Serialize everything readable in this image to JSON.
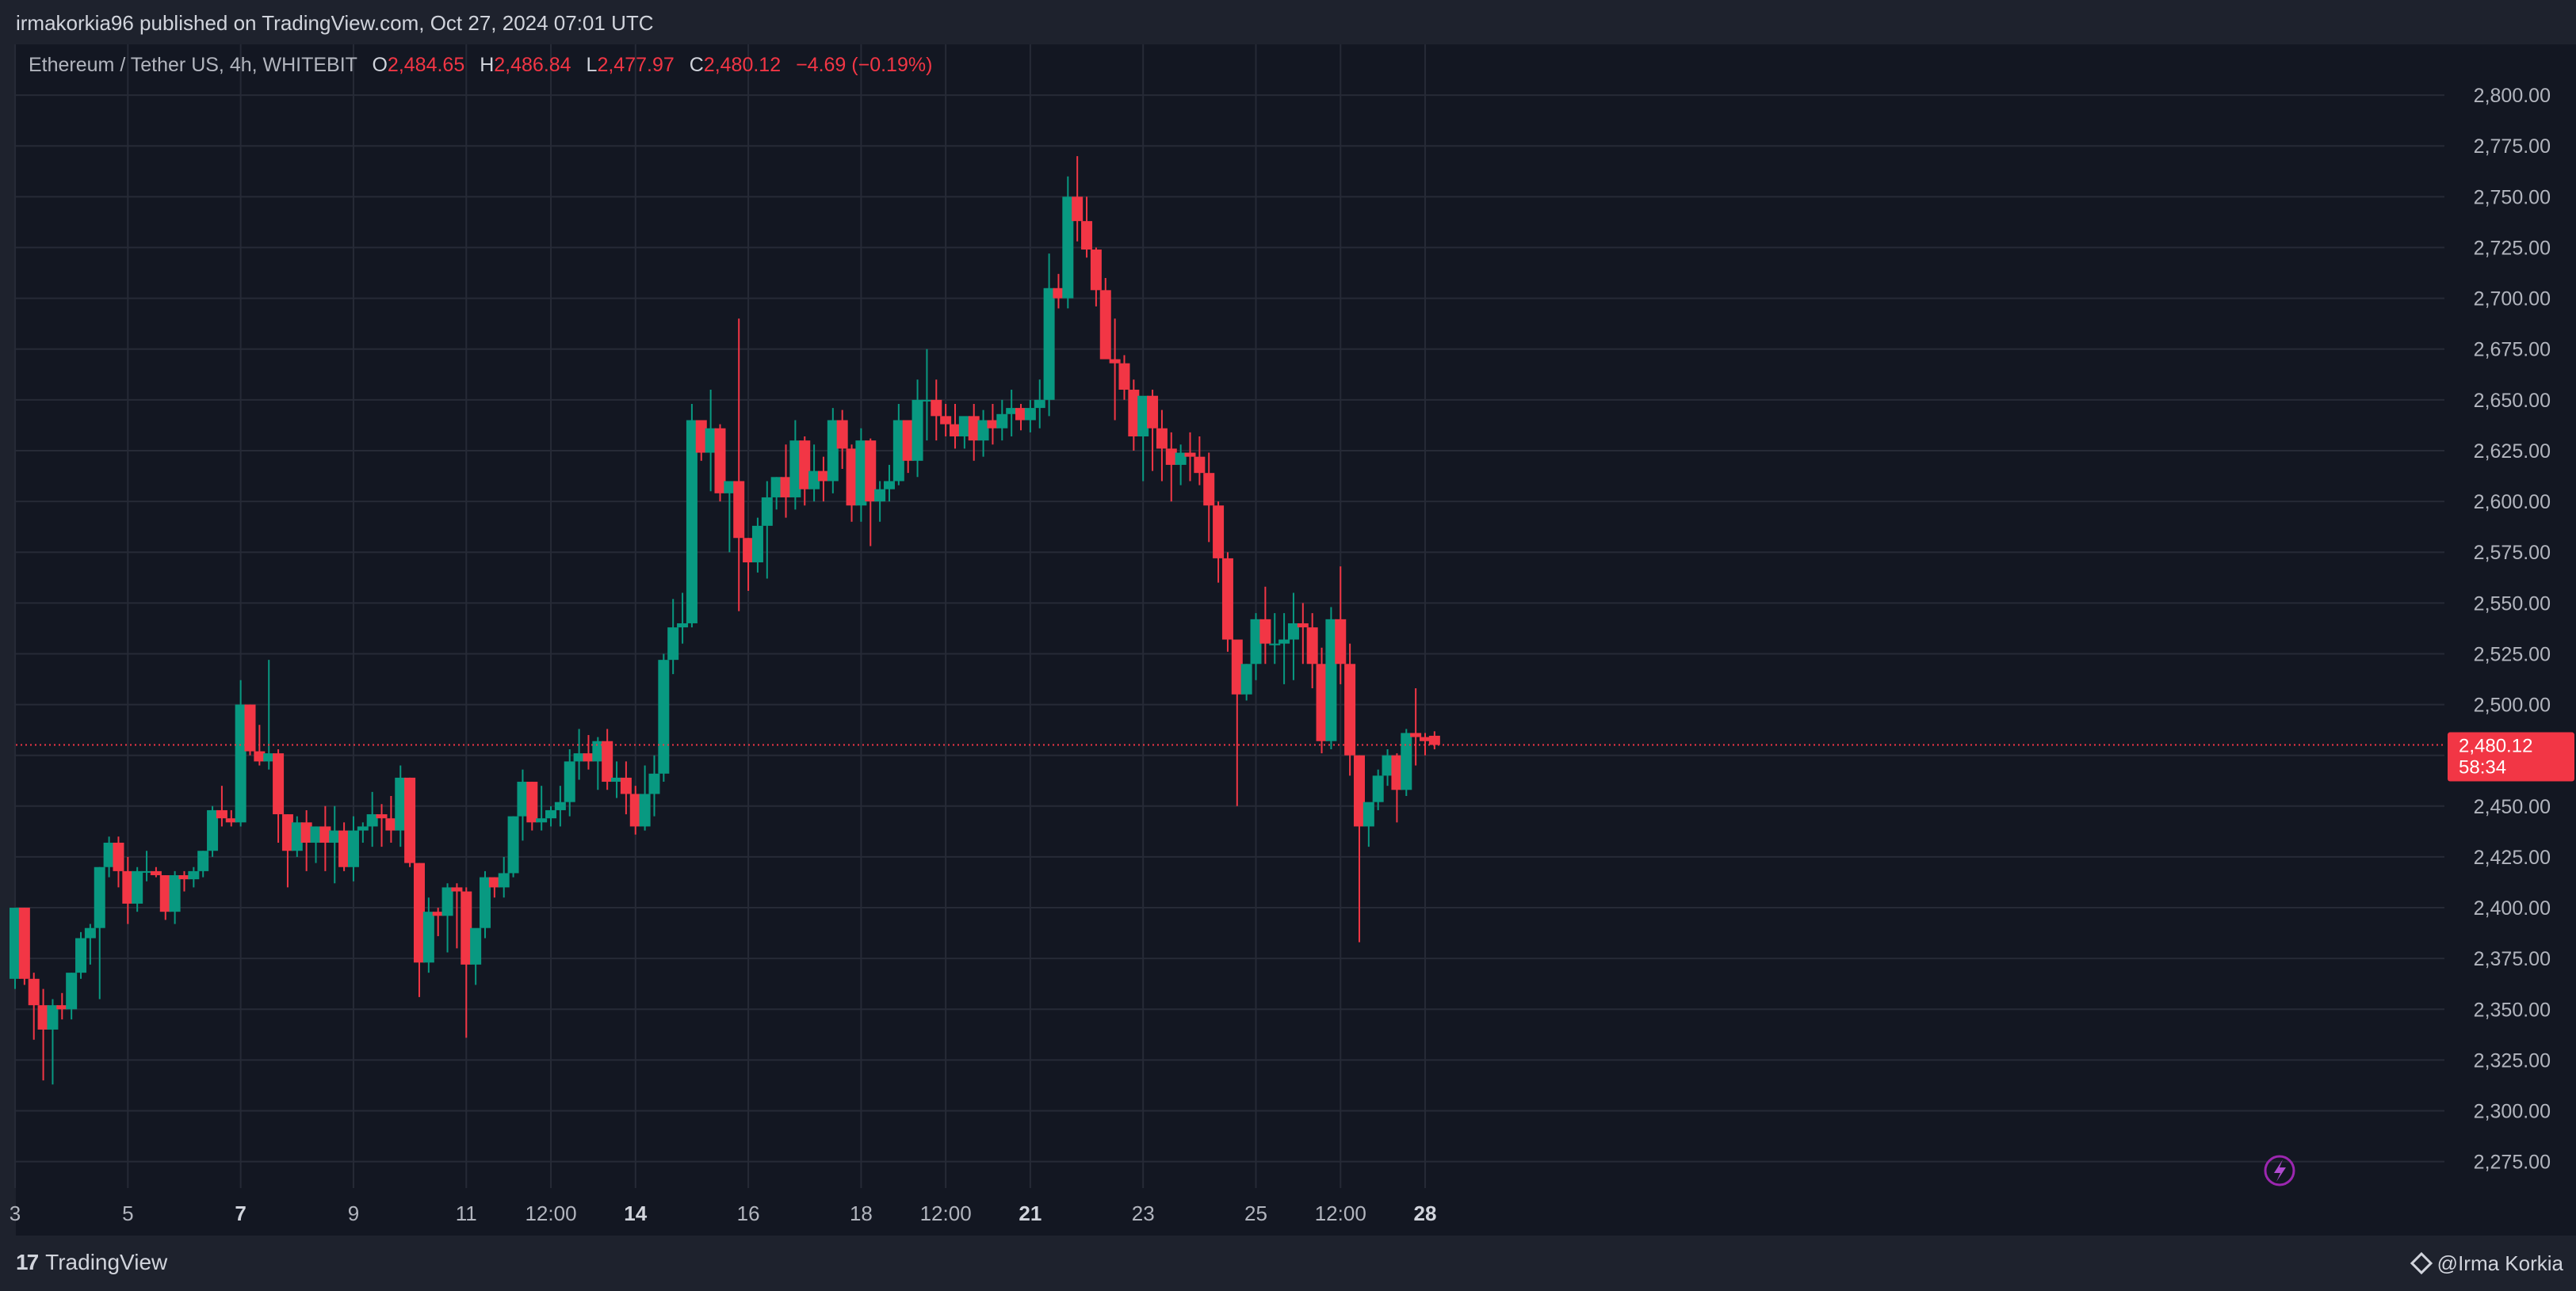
{
  "header": {
    "published_line": "irmakorkia96 published on TradingView.com, Oct 27, 2024 07:01 UTC"
  },
  "legend": {
    "symbol": "Ethereum / Tether US, 4h, WHITEBIT",
    "o_label": "O",
    "o": "2,484.65",
    "h_label": "H",
    "h": "2,486.84",
    "l_label": "L",
    "l": "2,477.97",
    "c_label": "C",
    "c": "2,480.12",
    "change": "−4.69 (−0.19%)"
  },
  "last_price": {
    "price": "2,480.12",
    "countdown": "58:34"
  },
  "footer": {
    "brand": "TradingView",
    "author": "@Irma Korkia"
  },
  "colors": {
    "up": "#089981",
    "down": "#f23645",
    "background": "#131722",
    "grid": "#262a36",
    "axis_text": "#b2b5be"
  },
  "chart_data": {
    "type": "candlestick",
    "symbol": "Ethereum / Tether US",
    "timeframe": "4h",
    "exchange": "WHITEBIT",
    "ylim": [
      2262,
      2825
    ],
    "y_ticks": [
      2275,
      2300,
      2325,
      2350,
      2375,
      2400,
      2425,
      2450,
      2475,
      2500,
      2525,
      2550,
      2575,
      2600,
      2625,
      2650,
      2675,
      2700,
      2725,
      2750,
      2775,
      2800
    ],
    "x_ticks": [
      {
        "label": "3",
        "i": 0,
        "major": false
      },
      {
        "label": "5",
        "i": 12,
        "major": false
      },
      {
        "label": "7",
        "i": 24,
        "major": true
      },
      {
        "label": "9",
        "i": 36,
        "major": false
      },
      {
        "label": "11",
        "i": 48,
        "major": false
      },
      {
        "label": "12:00",
        "i": 57,
        "major": false
      },
      {
        "label": "14",
        "i": 66,
        "major": true
      },
      {
        "label": "16",
        "i": 78,
        "major": false
      },
      {
        "label": "18",
        "i": 90,
        "major": false
      },
      {
        "label": "12:00",
        "i": 99,
        "major": false
      },
      {
        "label": "21",
        "i": 108,
        "major": true
      },
      {
        "label": "23",
        "i": 120,
        "major": false
      },
      {
        "label": "25",
        "i": 132,
        "major": false
      },
      {
        "label": "12:00",
        "i": 141,
        "major": false
      },
      {
        "label": "28",
        "i": 150,
        "major": true
      }
    ],
    "candles": [
      [
        2365,
        2400,
        2360,
        2400
      ],
      [
        2400,
        2400,
        2362,
        2365
      ],
      [
        2365,
        2368,
        2335,
        2352
      ],
      [
        2352,
        2360,
        2315,
        2340
      ],
      [
        2340,
        2355,
        2313,
        2352
      ],
      [
        2352,
        2358,
        2345,
        2350
      ],
      [
        2350,
        2368,
        2345,
        2368
      ],
      [
        2368,
        2388,
        2365,
        2385
      ],
      [
        2385,
        2392,
        2372,
        2390
      ],
      [
        2390,
        2420,
        2355,
        2420
      ],
      [
        2420,
        2435,
        2415,
        2432
      ],
      [
        2432,
        2435,
        2410,
        2418
      ],
      [
        2418,
        2425,
        2392,
        2402
      ],
      [
        2402,
        2420,
        2398,
        2418
      ],
      [
        2418,
        2428,
        2413,
        2418
      ],
      [
        2418,
        2420,
        2415,
        2416
      ],
      [
        2416,
        2416,
        2394,
        2398
      ],
      [
        2398,
        2418,
        2392,
        2416
      ],
      [
        2416,
        2418,
        2408,
        2414
      ],
      [
        2414,
        2420,
        2410,
        2418
      ],
      [
        2418,
        2428,
        2415,
        2428
      ],
      [
        2428,
        2450,
        2425,
        2448
      ],
      [
        2448,
        2460,
        2440,
        2444
      ],
      [
        2444,
        2448,
        2440,
        2442
      ],
      [
        2442,
        2512,
        2440,
        2500
      ],
      [
        2500,
        2500,
        2475,
        2477
      ],
      [
        2477,
        2490,
        2470,
        2472
      ],
      [
        2472,
        2522,
        2468,
        2476
      ],
      [
        2476,
        2478,
        2432,
        2446
      ],
      [
        2446,
        2446,
        2410,
        2428
      ],
      [
        2428,
        2445,
        2425,
        2442
      ],
      [
        2442,
        2448,
        2418,
        2432
      ],
      [
        2432,
        2440,
        2422,
        2440
      ],
      [
        2440,
        2450,
        2418,
        2432
      ],
      [
        2432,
        2450,
        2412,
        2438
      ],
      [
        2438,
        2442,
        2418,
        2420
      ],
      [
        2420,
        2445,
        2413,
        2438
      ],
      [
        2438,
        2442,
        2432,
        2440
      ],
      [
        2440,
        2457,
        2430,
        2446
      ],
      [
        2446,
        2451,
        2430,
        2444
      ],
      [
        2444,
        2455,
        2432,
        2438
      ],
      [
        2438,
        2470,
        2430,
        2464
      ],
      [
        2464,
        2464,
        2420,
        2422
      ],
      [
        2422,
        2422,
        2356,
        2373
      ],
      [
        2373,
        2405,
        2368,
        2398
      ],
      [
        2398,
        2400,
        2386,
        2396
      ],
      [
        2396,
        2412,
        2378,
        2410
      ],
      [
        2410,
        2412,
        2380,
        2408
      ],
      [
        2408,
        2410,
        2336,
        2372
      ],
      [
        2372,
        2388,
        2362,
        2390
      ],
      [
        2390,
        2418,
        2385,
        2415
      ],
      [
        2415,
        2415,
        2405,
        2410
      ],
      [
        2410,
        2425,
        2405,
        2417
      ],
      [
        2417,
        2445,
        2415,
        2445
      ],
      [
        2445,
        2468,
        2433,
        2462
      ],
      [
        2462,
        2462,
        2438,
        2442
      ],
      [
        2442,
        2460,
        2438,
        2444
      ],
      [
        2444,
        2450,
        2440,
        2448
      ],
      [
        2448,
        2460,
        2440,
        2452
      ],
      [
        2452,
        2478,
        2445,
        2472
      ],
      [
        2472,
        2488,
        2463,
        2476
      ],
      [
        2476,
        2485,
        2468,
        2472
      ],
      [
        2472,
        2484,
        2458,
        2482
      ],
      [
        2482,
        2488,
        2458,
        2462
      ],
      [
        2462,
        2472,
        2454,
        2464
      ],
      [
        2464,
        2472,
        2446,
        2456
      ],
      [
        2456,
        2460,
        2436,
        2440
      ],
      [
        2440,
        2470,
        2438,
        2456
      ],
      [
        2456,
        2475,
        2445,
        2466
      ],
      [
        2466,
        2525,
        2462,
        2522
      ],
      [
        2522,
        2552,
        2515,
        2538
      ],
      [
        2538,
        2555,
        2530,
        2540
      ],
      [
        2540,
        2648,
        2538,
        2640
      ],
      [
        2640,
        2640,
        2620,
        2624
      ],
      [
        2624,
        2655,
        2605,
        2636
      ],
      [
        2636,
        2638,
        2600,
        2604
      ],
      [
        2604,
        2610,
        2575,
        2610
      ],
      [
        2610,
        2690,
        2546,
        2582
      ],
      [
        2582,
        2582,
        2556,
        2570
      ],
      [
        2570,
        2592,
        2565,
        2588
      ],
      [
        2588,
        2610,
        2562,
        2602
      ],
      [
        2602,
        2612,
        2596,
        2612
      ],
      [
        2612,
        2628,
        2592,
        2602
      ],
      [
        2602,
        2640,
        2596,
        2630
      ],
      [
        2630,
        2632,
        2598,
        2606
      ],
      [
        2606,
        2628,
        2600,
        2615
      ],
      [
        2615,
        2622,
        2600,
        2610
      ],
      [
        2610,
        2646,
        2604,
        2640
      ],
      [
        2640,
        2645,
        2616,
        2626
      ],
      [
        2626,
        2628,
        2590,
        2598
      ],
      [
        2598,
        2636,
        2590,
        2630
      ],
      [
        2630,
        2631,
        2578,
        2600
      ],
      [
        2600,
        2610,
        2590,
        2606
      ],
      [
        2606,
        2618,
        2600,
        2610
      ],
      [
        2610,
        2648,
        2608,
        2640
      ],
      [
        2640,
        2640,
        2614,
        2620
      ],
      [
        2620,
        2660,
        2612,
        2650
      ],
      [
        2650,
        2675,
        2630,
        2650
      ],
      [
        2650,
        2660,
        2630,
        2642
      ],
      [
        2642,
        2648,
        2632,
        2638
      ],
      [
        2638,
        2648,
        2626,
        2632
      ],
      [
        2632,
        2640,
        2626,
        2642
      ],
      [
        2642,
        2648,
        2620,
        2630
      ],
      [
        2630,
        2645,
        2622,
        2640
      ],
      [
        2640,
        2648,
        2628,
        2636
      ],
      [
        2636,
        2650,
        2630,
        2643
      ],
      [
        2643,
        2655,
        2632,
        2646
      ],
      [
        2646,
        2648,
        2635,
        2640
      ],
      [
        2640,
        2650,
        2634,
        2646
      ],
      [
        2646,
        2660,
        2636,
        2650
      ],
      [
        2650,
        2722,
        2642,
        2705
      ],
      [
        2705,
        2712,
        2695,
        2700
      ],
      [
        2700,
        2760,
        2695,
        2750
      ],
      [
        2750,
        2770,
        2728,
        2738
      ],
      [
        2738,
        2750,
        2720,
        2724
      ],
      [
        2724,
        2725,
        2696,
        2704
      ],
      [
        2704,
        2710,
        2670,
        2670
      ],
      [
        2670,
        2690,
        2640,
        2668
      ],
      [
        2668,
        2672,
        2650,
        2655
      ],
      [
        2655,
        2660,
        2625,
        2632
      ],
      [
        2632,
        2650,
        2610,
        2652
      ],
      [
        2652,
        2655,
        2615,
        2636
      ],
      [
        2636,
        2645,
        2610,
        2626
      ],
      [
        2626,
        2634,
        2600,
        2618
      ],
      [
        2618,
        2628,
        2608,
        2624
      ],
      [
        2624,
        2634,
        2610,
        2622
      ],
      [
        2622,
        2632,
        2608,
        2614
      ],
      [
        2614,
        2624,
        2580,
        2598
      ],
      [
        2598,
        2600,
        2560,
        2572
      ],
      [
        2572,
        2575,
        2526,
        2532
      ],
      [
        2532,
        2532,
        2450,
        2505
      ],
      [
        2505,
        2520,
        2502,
        2520
      ],
      [
        2520,
        2545,
        2512,
        2542
      ],
      [
        2542,
        2558,
        2520,
        2530
      ],
      [
        2530,
        2545,
        2520,
        2530
      ],
      [
        2530,
        2545,
        2510,
        2532
      ],
      [
        2532,
        2555,
        2512,
        2540
      ],
      [
        2540,
        2550,
        2520,
        2538
      ],
      [
        2538,
        2545,
        2508,
        2520
      ],
      [
        2520,
        2528,
        2476,
        2482
      ],
      [
        2482,
        2548,
        2478,
        2542
      ],
      [
        2542,
        2568,
        2510,
        2520
      ],
      [
        2520,
        2530,
        2465,
        2475
      ],
      [
        2475,
        2475,
        2383,
        2440
      ],
      [
        2440,
        2450,
        2430,
        2452
      ],
      [
        2452,
        2468,
        2448,
        2465
      ],
      [
        2465,
        2478,
        2460,
        2475
      ],
      [
        2475,
        2476,
        2442,
        2458
      ],
      [
        2458,
        2488,
        2455,
        2486
      ],
      [
        2486,
        2508,
        2470,
        2484
      ],
      [
        2484,
        2486,
        2475,
        2482
      ],
      [
        2484.65,
        2486.84,
        2477.97,
        2480.12
      ]
    ]
  }
}
